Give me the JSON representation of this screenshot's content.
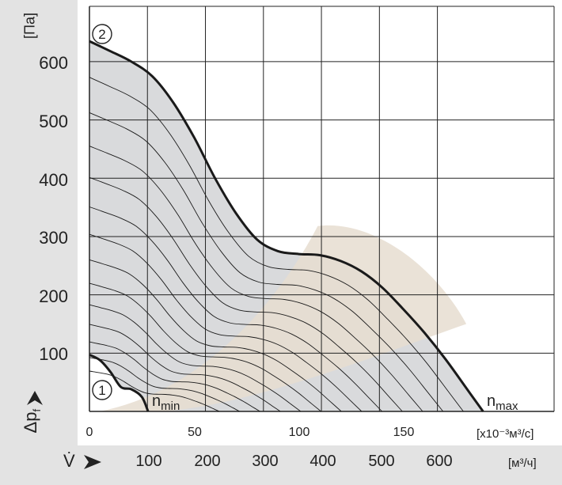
{
  "chart_data": {
    "type": "line",
    "y_unit": "[Па]",
    "y_symbol": "Δp",
    "y_symbol_sub": "f",
    "x_unit_primary": "[x10⁻³м³/с]",
    "x_unit_secondary": "[м³/ч]",
    "x_symbol": "V̇",
    "ylim": [
      0,
      650
    ],
    "xlim": [
      0,
      190
    ],
    "yticks": [
      100,
      200,
      300,
      400,
      500,
      600
    ],
    "xticks": [
      0,
      50,
      100,
      150
    ],
    "xticks_secondary": [
      100,
      200,
      300,
      400,
      500,
      600
    ],
    "annotations": {
      "marker_1": "1",
      "marker_2": "2",
      "n_min_base": "n",
      "n_min_sub": "min",
      "n_max_base": "n",
      "n_max_sub": "max"
    },
    "series": [
      {
        "name": "n_max",
        "x": [
          0,
          10,
          20,
          30,
          40,
          50,
          60,
          70,
          80,
          90,
          100,
          110,
          120,
          130,
          140,
          150,
          160,
          170,
          180,
          188
        ],
        "y": [
          635,
          618,
          600,
          575,
          530,
          470,
          400,
          340,
          295,
          275,
          270,
          268,
          258,
          240,
          212,
          175,
          135,
          90,
          40,
          0
        ]
      },
      {
        "name": "n_min",
        "x": [
          0,
          5,
          10,
          15,
          20,
          25,
          28
        ],
        "y": [
          97,
          88,
          68,
          42,
          38,
          25,
          0
        ]
      }
    ],
    "colors": {
      "envelope": "#d9dadc",
      "recommended": "#e6ddd0",
      "lines": "#1a1a1a",
      "grid": "#222222"
    }
  }
}
